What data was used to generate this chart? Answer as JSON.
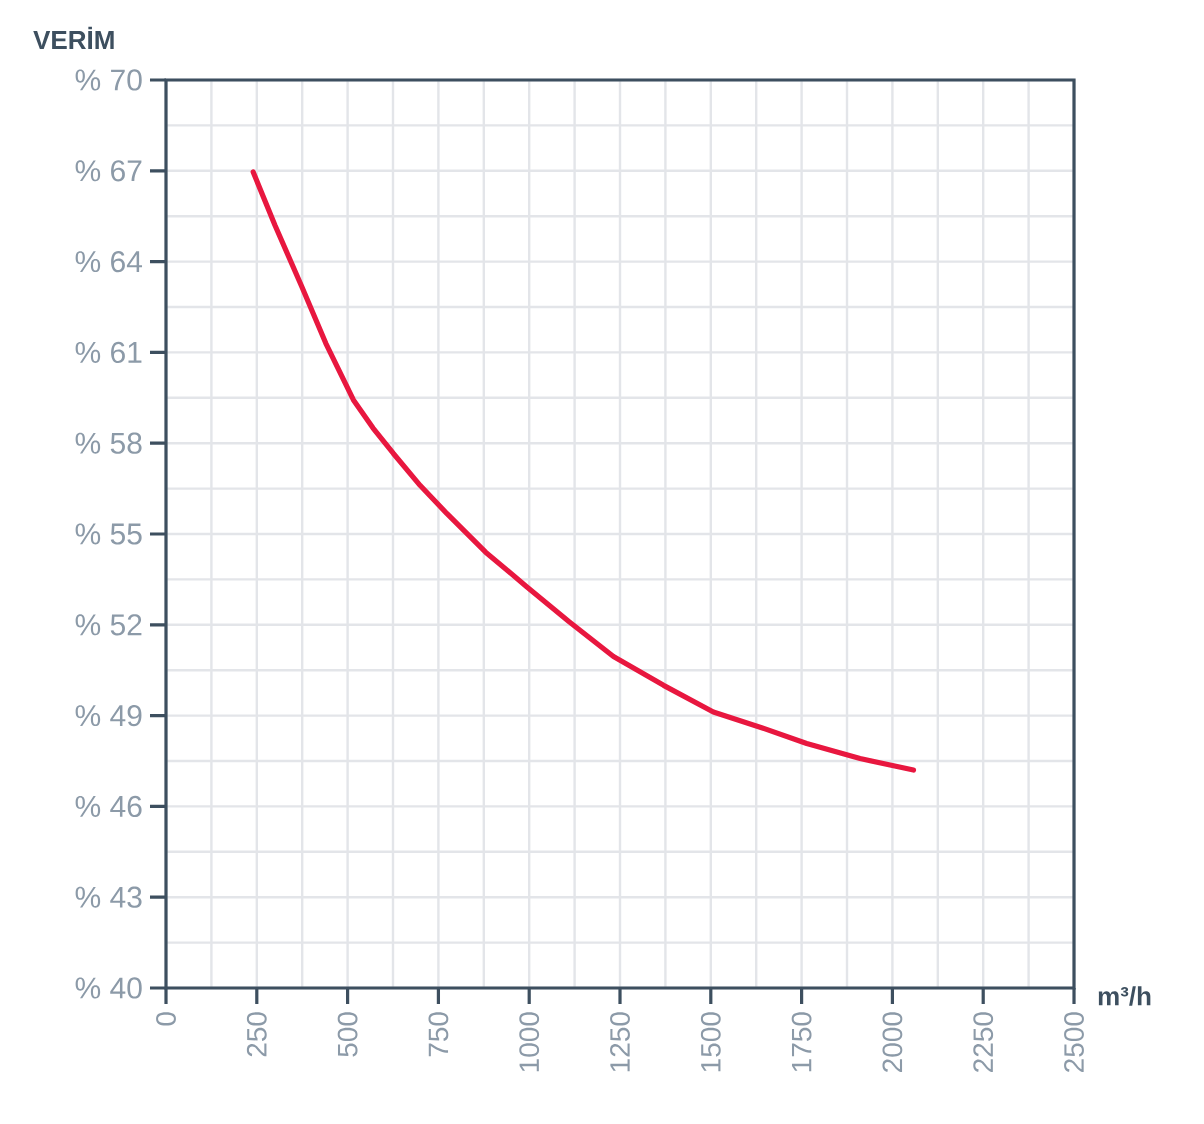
{
  "chart_data": {
    "type": "line",
    "ylabel": "VERİM",
    "xlabel": "m³/h",
    "x": [
      240,
      300,
      374,
      440,
      516,
      570,
      626,
      700,
      773,
      880,
      993,
      1110,
      1232,
      1370,
      1507,
      1640,
      1764,
      1911,
      2058
    ],
    "series": [
      {
        "color": "#e8173f",
        "values": [
          66.96,
          65.2,
          63.17,
          61.3,
          59.43,
          58.5,
          57.66,
          56.6,
          55.68,
          54.4,
          53.26,
          52.1,
          50.95,
          50.0,
          49.12,
          48.6,
          48.08,
          47.58,
          47.2
        ]
      }
    ],
    "xlim": [
      0,
      2500
    ],
    "ylim": [
      40,
      70
    ],
    "xticks": [
      0,
      250,
      500,
      750,
      1000,
      1250,
      1500,
      1750,
      2000,
      2250,
      2500
    ],
    "yticks": [
      {
        "value": 40,
        "label": "% 40"
      },
      {
        "value": 43,
        "label": "% 43"
      },
      {
        "value": 46,
        "label": "% 46"
      },
      {
        "value": 49,
        "label": "% 49"
      },
      {
        "value": 52,
        "label": "% 52"
      },
      {
        "value": 55,
        "label": "% 55"
      },
      {
        "value": 58,
        "label": "% 58"
      },
      {
        "value": 61,
        "label": "% 61"
      },
      {
        "value": 64,
        "label": "% 64"
      },
      {
        "value": 67,
        "label": "% 67"
      },
      {
        "value": 70,
        "label": "% 70"
      }
    ],
    "grid": true,
    "marker": "none",
    "line_style": "solid"
  }
}
